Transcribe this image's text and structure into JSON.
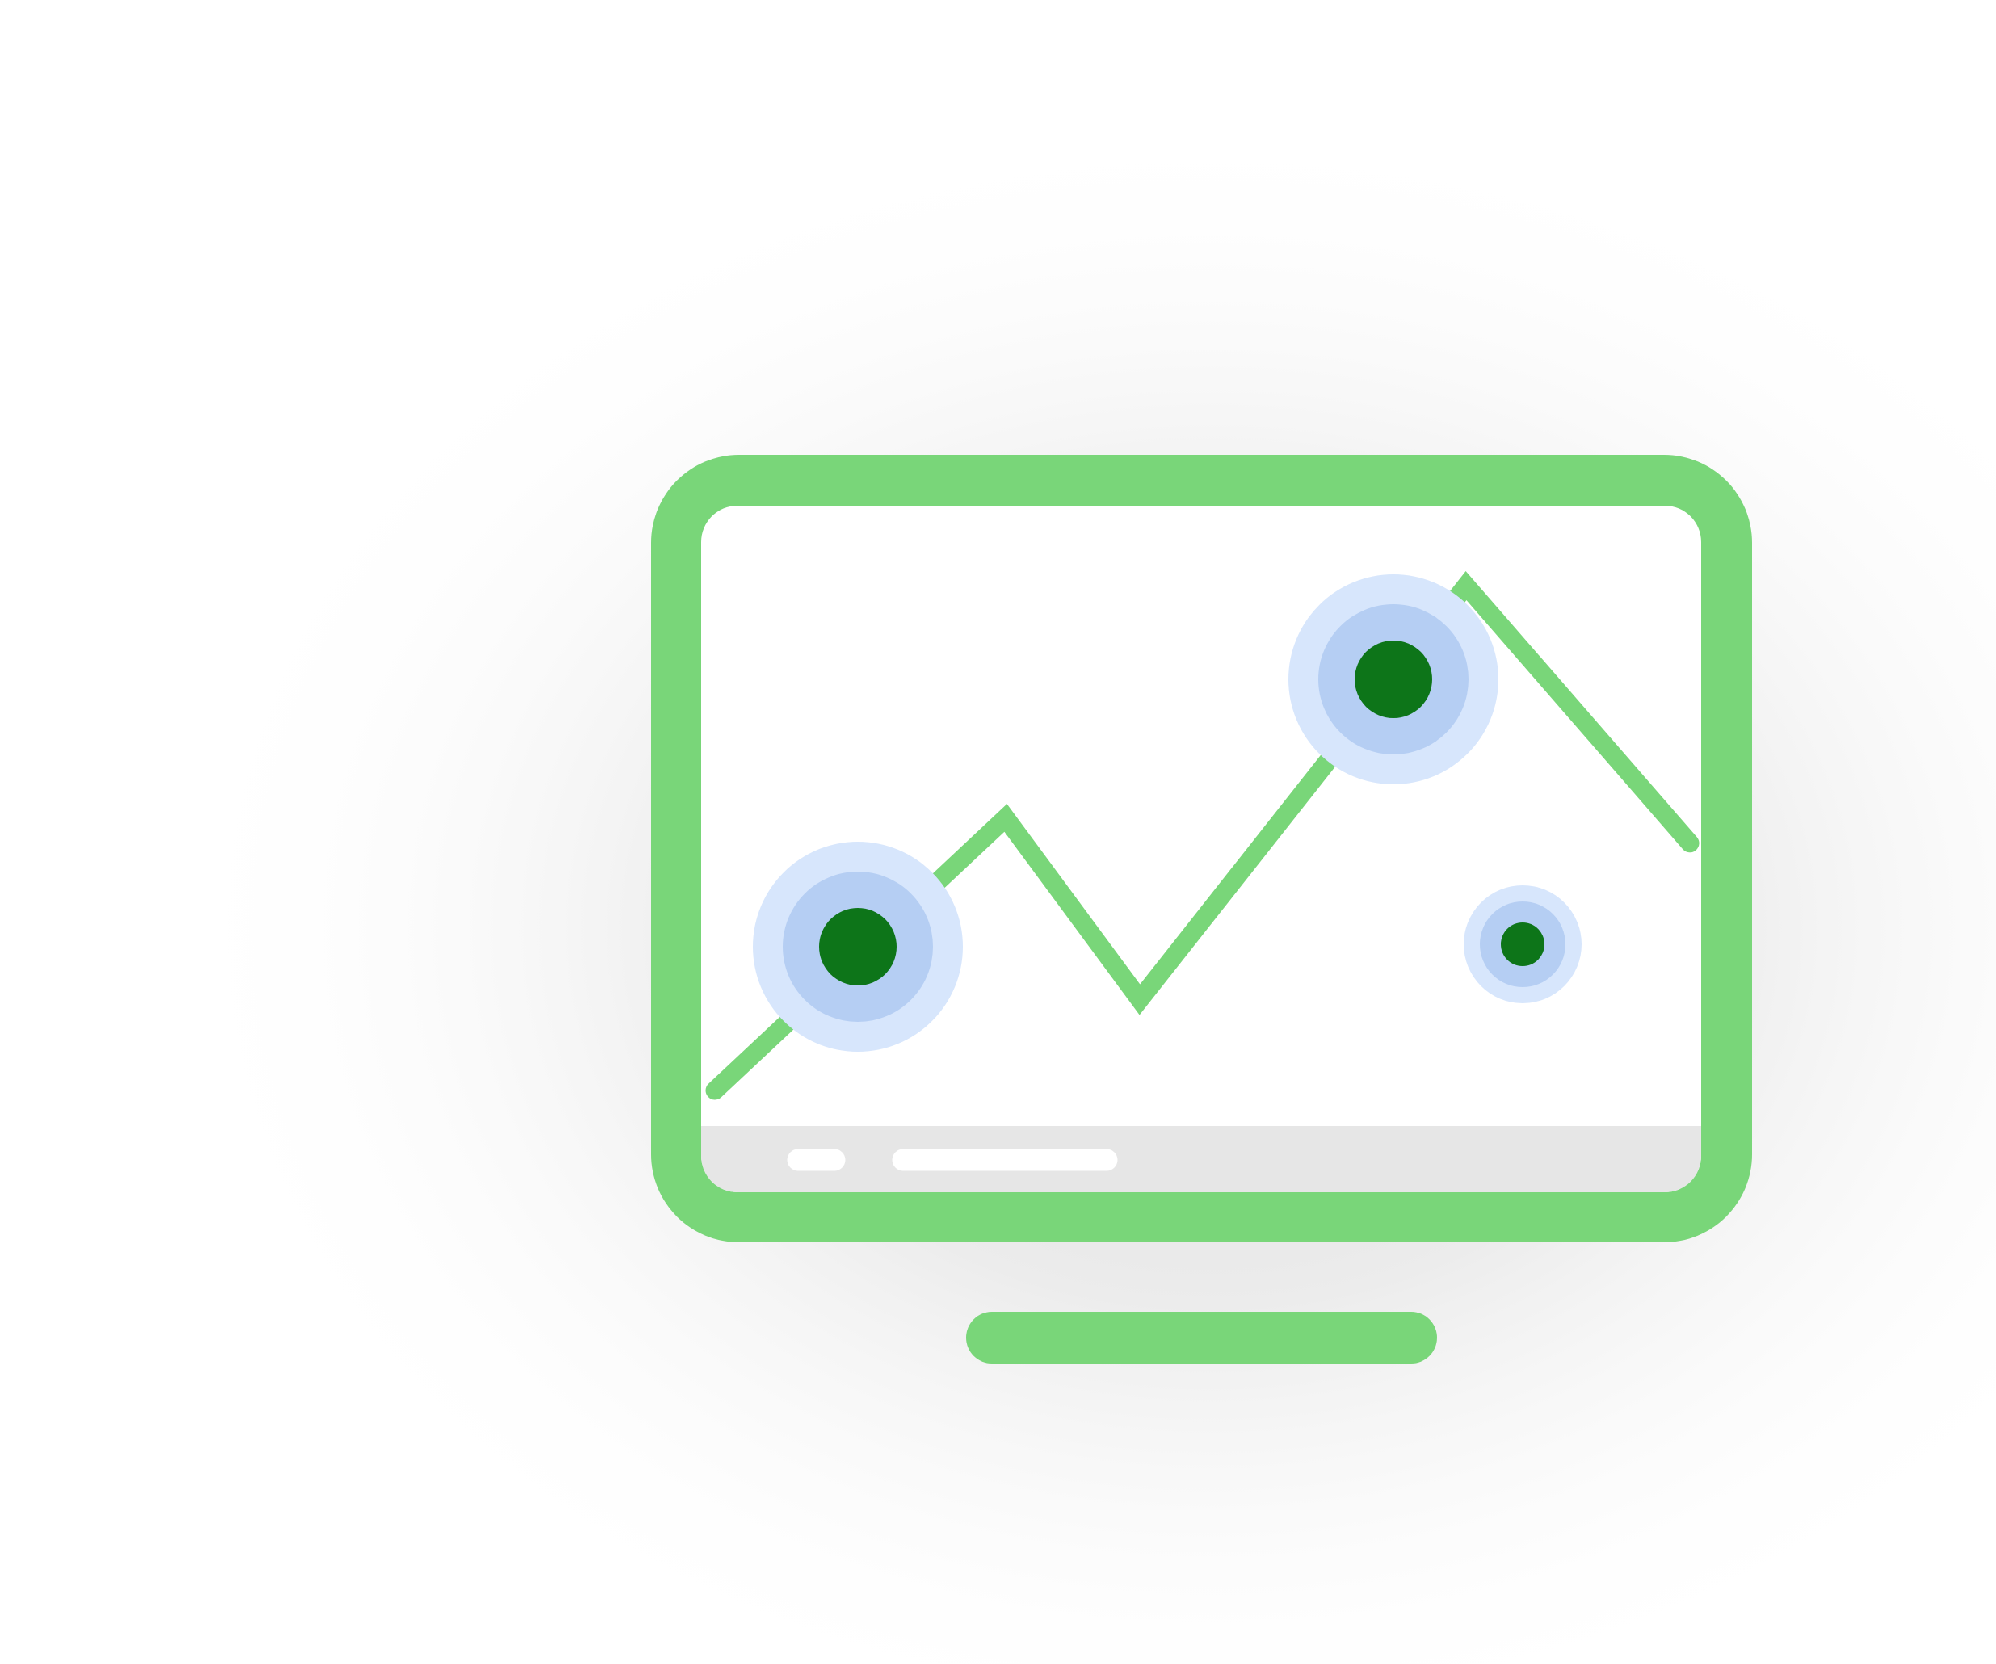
{
  "illustration": {
    "subject": "monitor-line-chart-icon",
    "colors": {
      "frame": "#79d679",
      "screen": "#ffffff",
      "status_bar": "#e6e6e6",
      "status_pill": "#ffffff",
      "trend_line": "#79d679",
      "ring_outer": "#d7e6fc",
      "ring_inner": "#b5cef3",
      "dot": "#0d7519",
      "backdrop_shade": "#dedede"
    },
    "trend_series": [
      {
        "step": 0,
        "level": 0.0
      },
      {
        "step": 1,
        "level": 0.54
      },
      {
        "step": 2,
        "level": 0.18
      },
      {
        "step": 3,
        "level": 1.0
      },
      {
        "step": 4,
        "level": 0.49
      }
    ],
    "highlighted_points": [
      {
        "name": "start-highlight",
        "size": "large"
      },
      {
        "name": "peak-highlight",
        "size": "large"
      },
      {
        "name": "off-line-highlight",
        "size": "small"
      }
    ]
  }
}
